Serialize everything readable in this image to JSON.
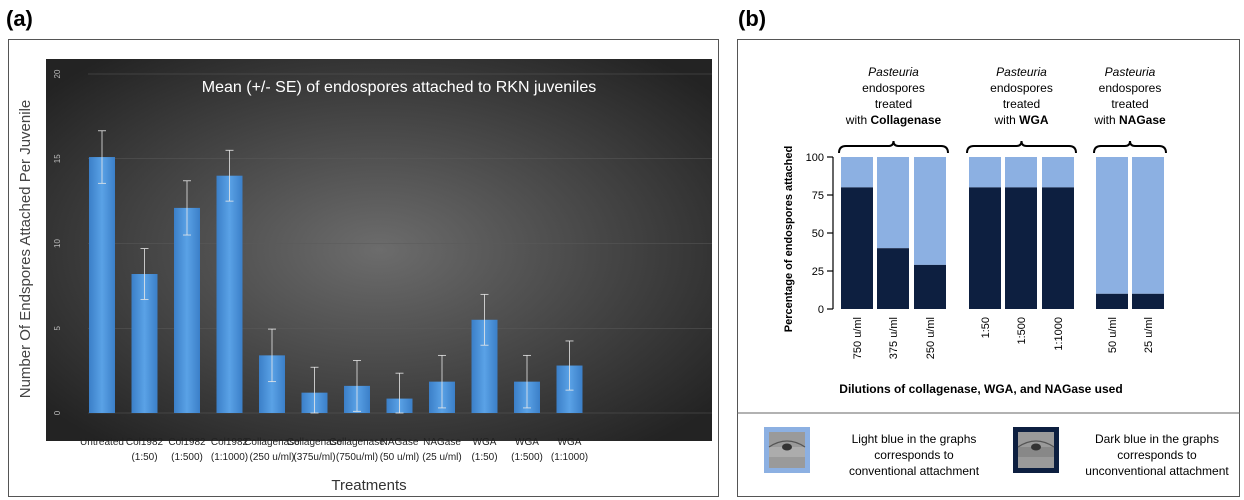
{
  "panels": {
    "a_label": "(a)",
    "b_label": "(b)"
  },
  "colors": {
    "bar_a": "#4d94dc",
    "dark_blue": "#0d1f40",
    "light_blue": "#8cb0e2",
    "plot_bg_center": "#6c6c6c",
    "plot_bg_edge": "#232323"
  },
  "chart_data": [
    {
      "type": "bar",
      "title": "Mean (+/- SE) of endospores attached to RKN juveniles",
      "xlabel": "Treatments",
      "ylabel": "Number Of Endspores Attached Per Juvenile",
      "ylim": [
        0,
        20
      ],
      "yticks": [
        "0",
        "5",
        "10",
        "15",
        "20"
      ],
      "grid": true,
      "categories": [
        [
          "Untreated",
          ""
        ],
        [
          "Col1982",
          "(1:50)"
        ],
        [
          "Col1982",
          "(1:500)"
        ],
        [
          "Col1982",
          "(1:1000)"
        ],
        [
          "Collagenase",
          "(250 u/ml)"
        ],
        [
          "Collagenase",
          "(375u/ml)"
        ],
        [
          "Collagenase",
          "(750u/ml)"
        ],
        [
          "NAGase",
          "(50 u/ml)"
        ],
        [
          "NAGase",
          "(25 u/ml)"
        ],
        [
          "WGA",
          "(1:50)"
        ],
        [
          "WGA",
          "(1:500)"
        ],
        [
          "WGA",
          "(1:1000)"
        ]
      ],
      "values": [
        15.1,
        8.2,
        12.1,
        14.0,
        3.4,
        1.2,
        1.6,
        0.85,
        1.85,
        5.5,
        1.85,
        2.8
      ],
      "errors": [
        1.55,
        1.5,
        1.6,
        1.5,
        1.55,
        1.5,
        1.5,
        1.5,
        1.55,
        1.5,
        1.55,
        1.45
      ]
    },
    {
      "type": "bar",
      "stacked": true,
      "xlabel": "Dilutions of collagenase, WGA, and NAGase used",
      "ylabel": "Percentage of endospores attached",
      "ylim": [
        0,
        100
      ],
      "yticks": [
        "0",
        "25",
        "50",
        "75",
        "100"
      ],
      "groups": [
        {
          "title_lines": [
            [
              "Pasteuria",
              "italic"
            ],
            [
              "endospores",
              "normal"
            ],
            [
              "treated",
              "normal"
            ]
          ],
          "last_line_prefix": "with ",
          "last_line_bold": "Collagenase",
          "categories": [
            "750 u/ml",
            "375 u/ml",
            "250 u/ml"
          ],
          "dark": [
            80,
            40,
            29
          ]
        },
        {
          "title_lines": [
            [
              "Pasteuria",
              "italic"
            ],
            [
              "endospores",
              "normal"
            ],
            [
              "treated",
              "normal"
            ]
          ],
          "last_line_prefix": "with ",
          "last_line_bold": "WGA",
          "categories": [
            "1:50",
            "1:500",
            "1:1000"
          ],
          "dark": [
            80,
            80,
            80
          ]
        },
        {
          "title_lines": [
            [
              "Pasteuria",
              "italic"
            ],
            [
              "endospores",
              "normal"
            ],
            [
              "treated",
              "normal"
            ]
          ],
          "last_line_prefix": "with ",
          "last_line_bold": "NAGase",
          "categories": [
            "50 u/ml",
            "25 u/ml"
          ],
          "dark": [
            10,
            10
          ]
        }
      ],
      "legend": {
        "light_text": [
          "Light blue in the graphs",
          "corresponds to",
          "conventional attachment"
        ],
        "dark_text": [
          "Dark blue in the graphs",
          "corresponds to",
          "unconventional attachment"
        ]
      }
    }
  ]
}
